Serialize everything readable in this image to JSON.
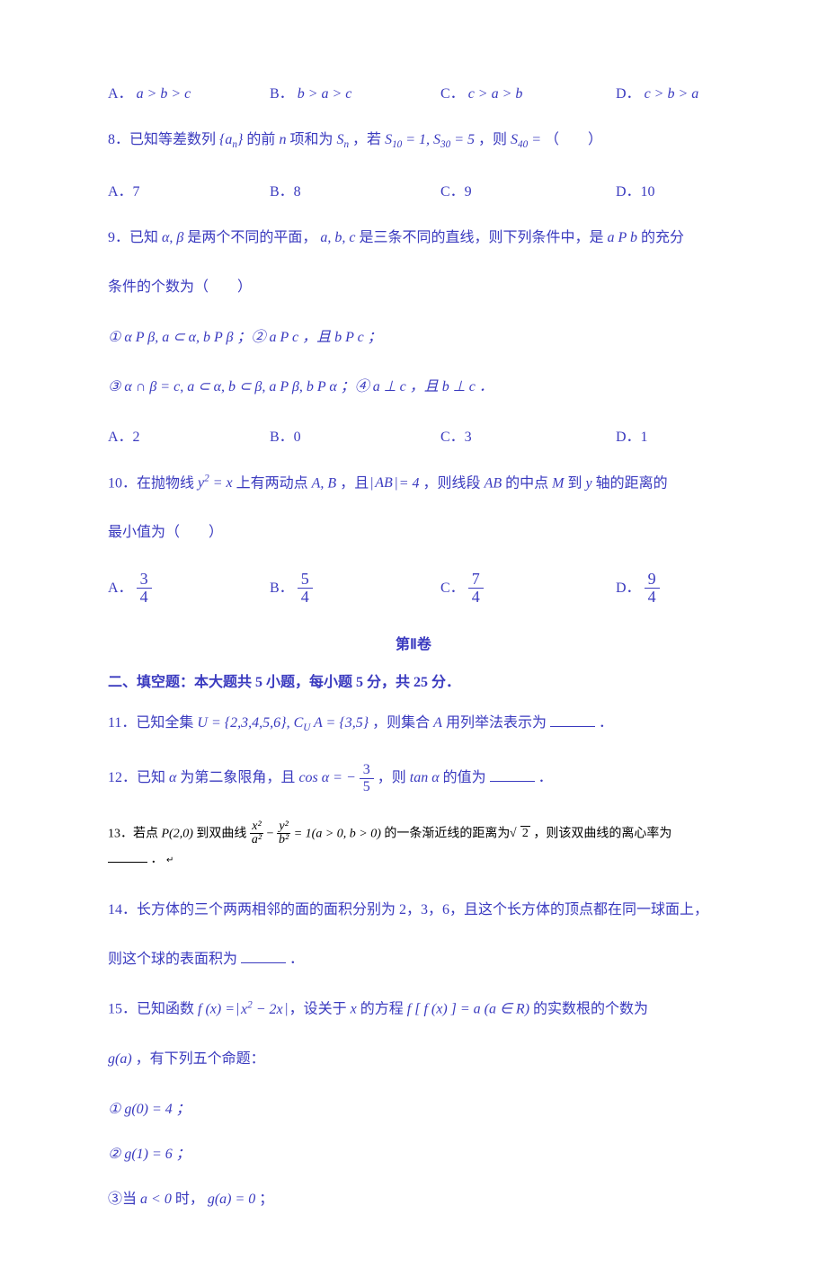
{
  "q7_options": {
    "A": {
      "label": "A．",
      "math": "a > b > c"
    },
    "B": {
      "label": "B．",
      "math": "b > a > c"
    },
    "C": {
      "label": "C．",
      "math": "c > a > b"
    },
    "D": {
      "label": "D．",
      "math": "c > b > a"
    }
  },
  "q8": {
    "text_pre": "8．已知等差数列",
    "set": "{aₙ}",
    "text_mid1": "的前",
    "n": "n",
    "text_mid2": "项和为",
    "Sn": "Sₙ",
    "text_mid3": "，若",
    "cond": "S₁₀ = 1, S₃₀ = 5",
    "text_mid4": "，则",
    "S40": "S₄₀ =",
    "paren": "（　　）",
    "options": {
      "A": "A．7",
      "B": "B．8",
      "C": "C．9",
      "D": "D．10"
    }
  },
  "q9": {
    "line1_pre": "9．已知",
    "ab": "α, β",
    "line1_mid1": "是两个不同的平面，",
    "abc": "a, b, c",
    "line1_mid2": "是三条不同的直线，则下列条件中，是",
    "cond": "a P b",
    "line1_end": "的充分",
    "line2": "条件的个数为（　　）",
    "cond1": "① α P β, a ⊂ α, b P β ；② a P c ，且 b P c ；",
    "cond2": "③ α ∩ β = c, a ⊂ α, b ⊂ β, a P β, b P α ；④ a ⊥ c ，且 b ⊥ c ．",
    "options": {
      "A": "A．2",
      "B": "B．0",
      "C": "C．3",
      "D": "D．1"
    }
  },
  "q10": {
    "pre": "10．在抛物线",
    "eq": "y² = x",
    "mid1": "上有两动点",
    "AB": "A, B",
    "mid2": "，且",
    "abs": "|AB| = 4",
    "mid3": "，则线段",
    "seg": "AB",
    "mid4": "的中点",
    "M": "M",
    "mid5": "到",
    "y": "y",
    "mid6": "轴的距离的",
    "line2": "最小值为（　　）",
    "options": {
      "A": {
        "label": "A．",
        "num": "3",
        "den": "4"
      },
      "B": {
        "label": "B．",
        "num": "5",
        "den": "4"
      },
      "C": {
        "label": "C．",
        "num": "7",
        "den": "4"
      },
      "D": {
        "label": "D．",
        "num": "9",
        "den": "4"
      }
    }
  },
  "section2_header": "第Ⅱ卷",
  "section2_title": "二、填空题：本大题共 5 小题，每小题 5 分，共 25 分．",
  "q11": {
    "pre": "11．已知全集",
    "U": "U = {2,3,4,5,6}, C",
    "UA": "A = {3,5}",
    "mid": "，则集合",
    "A": "A",
    "end": "用列举法表示为",
    "dot": "．"
  },
  "q12": {
    "pre": "12．已知",
    "alpha": "α",
    "mid1": "为第二象限角，且",
    "cos": "cos α = −",
    "num": "3",
    "den": "5",
    "mid2": "，则",
    "tan": "tan α",
    "end": "的值为",
    "dot": "．"
  },
  "q13": {
    "pre": "13．若点",
    "P": "P(2,0)",
    "mid1": "到双曲线",
    "f1n": "x²",
    "f1d": "a²",
    "minus": " − ",
    "f2n": "y²",
    "f2d": "b²",
    "eq": " = 1(a > 0, b > 0)",
    "mid2": "的一条渐近线的距离为",
    "sqrt2": "2",
    "end": "，则该双曲线的离心率为",
    "dot": "．",
    "arrow": "↵"
  },
  "q14": {
    "line1": "14．长方体的三个两两相邻的面的面积分别为 2，3，6，且这个长方体的顶点都在同一球面上，",
    "line2_pre": "则这个球的表面积为",
    "dot": "．"
  },
  "q15": {
    "pre": "15．已知函数",
    "f": "f (x) = ",
    "abs": "x² − 2x",
    "mid1": "，设关于",
    "x": "x",
    "mid2": "的方程",
    "ff": "f [ f (x)] = a (a ∈ R)",
    "mid3": "的实数根的个数为",
    "ga": "g(a)",
    "line2": "，有下列五个命题：",
    "p1": "① g(0) = 4 ；",
    "p2": "② g(1) = 6 ；",
    "p3_pre": "③当",
    "p3_cond": "a < 0",
    "p3_mid": "时，",
    "p3_eq": "g(a) = 0",
    "p3_end": "；"
  }
}
